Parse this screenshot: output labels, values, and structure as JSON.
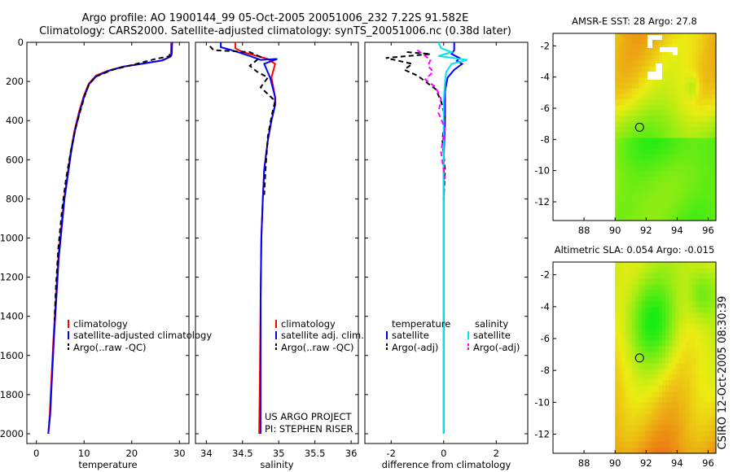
{
  "header": {
    "line1": "Argo profile: AO 1900144_99 05-Oct-2005 20051006_232 7.22S 91.582E",
    "line2": "Climatology: CARS2000. Satellite-adjusted climatology: synTS_20051006.nc (0.38d later)"
  },
  "side_stamp": "CSIRO 12-Oct-2005 08:30:39",
  "colors": {
    "climatology": "#ff0000",
    "satellite": "#0000ff",
    "argo": "#000000",
    "sal_satellite": "#00e5ee",
    "sal_argo": "#ff00ff"
  },
  "chart_data": [
    {
      "type": "line",
      "id": "temperature",
      "xlabel": "temperature",
      "ylabel": "",
      "xlim": [
        -2,
        32
      ],
      "ylim": [
        2050,
        0
      ],
      "xticks": [
        0,
        10,
        20,
        30
      ],
      "yticks": [
        0,
        200,
        400,
        600,
        800,
        1000,
        1200,
        1400,
        1600,
        1800,
        2000
      ],
      "legend": [
        "climatology",
        "satellite-adjusted climatology",
        "Argo(..raw -QC)"
      ],
      "series": [
        {
          "name": "climatology",
          "style": "solid",
          "color": "#ff0000",
          "x": [
            28.3,
            28.2,
            28.0,
            26,
            22,
            18,
            15,
            12.5,
            11,
            10,
            9,
            8,
            7.2,
            6.5,
            5.8,
            5.2,
            4.6,
            4.1,
            3.6,
            3.2,
            2.8,
            2.5
          ],
          "y": [
            0,
            60,
            75,
            95,
            110,
            125,
            145,
            170,
            210,
            270,
            350,
            450,
            560,
            680,
            800,
            950,
            1100,
            1300,
            1500,
            1700,
            1900,
            2000
          ]
        },
        {
          "name": "satellite-adjusted climatology",
          "style": "solid",
          "color": "#0000ff",
          "x": [
            28.5,
            28.4,
            28.2,
            26.5,
            22.5,
            18.3,
            15.2,
            12.6,
            11.1,
            10.1,
            9.1,
            8.1,
            7.3,
            6.6,
            5.9,
            5.3,
            4.7,
            4.2,
            3.7,
            3.3,
            2.9,
            2.5
          ],
          "y": [
            0,
            60,
            72,
            92,
            108,
            124,
            145,
            172,
            212,
            272,
            352,
            452,
            560,
            680,
            800,
            950,
            1100,
            1300,
            1500,
            1700,
            1900,
            2000
          ]
        },
        {
          "name": "Argo(..raw -QC)",
          "style": "dash",
          "color": "#000000",
          "x": [
            28.0,
            27.8,
            25,
            21,
            16,
            12.5,
            11,
            10.2,
            9.2,
            8.1,
            7.2,
            6.2,
            5.4,
            4.6,
            4.1,
            3.8
          ],
          "y": [
            60,
            72,
            85,
            110,
            140,
            175,
            215,
            270,
            350,
            450,
            560,
            700,
            850,
            1050,
            1250,
            1420
          ]
        }
      ]
    },
    {
      "type": "line",
      "id": "salinity",
      "xlabel": "salinity",
      "ylabel": "",
      "xlim": [
        33.85,
        36.1
      ],
      "xticks": [
        34,
        34.5,
        35,
        35.5,
        36
      ],
      "xticklabels": [
        "34",
        "34.5",
        "35",
        "35.5",
        "36"
      ],
      "legend": [
        "climatology",
        "satellite adj. clim.",
        "Argo(..raw -QC)"
      ],
      "annotation": [
        "US ARGO PROJECT",
        "PI: STEPHEN RISER"
      ],
      "series": [
        {
          "name": "climatology",
          "style": "solid",
          "color": "#ff0000",
          "x": [
            34.4,
            34.4,
            34.5,
            34.85,
            34.95,
            34.9,
            34.95,
            34.95,
            34.9,
            34.85,
            34.8,
            34.78,
            34.76,
            34.75,
            34.74,
            34.73
          ],
          "y": [
            0,
            30,
            50,
            85,
            110,
            180,
            280,
            320,
            400,
            500,
            650,
            800,
            1000,
            1300,
            1700,
            2000
          ]
        },
        {
          "name": "satellite adj. clim.",
          "style": "solid",
          "color": "#0000ff",
          "x": [
            34.2,
            34.2,
            34.35,
            34.6,
            34.75,
            34.98,
            34.8,
            34.88,
            34.95,
            34.95,
            34.9,
            34.85,
            34.8,
            34.78,
            34.76,
            34.75,
            34.75,
            34.75
          ],
          "y": [
            0,
            25,
            40,
            70,
            90,
            85,
            110,
            180,
            280,
            320,
            400,
            500,
            650,
            800,
            1000,
            1300,
            1700,
            2000
          ]
        },
        {
          "name": "Argo(..raw -QC)",
          "style": "dash",
          "color": "#000000",
          "x": [
            34.05,
            34.1,
            34.6,
            34.75,
            34.6,
            34.7,
            34.85,
            34.75,
            34.95,
            34.9,
            34.85,
            34.82,
            34.8
          ],
          "y": [
            20,
            40,
            50,
            75,
            120,
            150,
            180,
            230,
            300,
            380,
            480,
            640,
            780
          ]
        }
      ]
    },
    {
      "type": "line",
      "id": "difference",
      "xlabel": "difference from climatology",
      "ylabel": "",
      "xlim": [
        -3,
        3.2
      ],
      "xticks": [
        -2,
        0,
        2
      ],
      "legend": [
        "temperature",
        "satellite",
        "Argo(-adj)",
        "salinity",
        "satellite",
        "Argo(-adj)"
      ],
      "series": [
        {
          "name": "temperature satellite",
          "style": "solid",
          "color": "#0000ff",
          "x": [
            0.4,
            0.4,
            0.3,
            0.6,
            0.5,
            0.7,
            0.4,
            0.15,
            0.05,
            0.05,
            0,
            0,
            0,
            0,
            0
          ],
          "y": [
            0,
            40,
            60,
            80,
            95,
            110,
            140,
            180,
            250,
            400,
            600,
            900,
            1300,
            1700,
            2000
          ]
        },
        {
          "name": "temperature Argo(-adj)",
          "style": "dash",
          "color": "#000000",
          "x": [
            -1.4,
            -0.5,
            -2.2,
            -1.2,
            -1.5,
            -1.0,
            -0.7,
            -0.3,
            -0.1,
            0.05,
            -0.05,
            0.05,
            0
          ],
          "y": [
            50,
            60,
            80,
            110,
            140,
            170,
            200,
            240,
            300,
            380,
            500,
            650,
            800
          ]
        },
        {
          "name": "salinity satellite",
          "style": "solid",
          "color": "#00e5ee",
          "x": [
            -0.2,
            -0.1,
            0.3,
            -0.2,
            0.9,
            0.3,
            0.1,
            0.05,
            0,
            0,
            0,
            0,
            0
          ],
          "y": [
            0,
            30,
            50,
            70,
            90,
            110,
            150,
            200,
            300,
            500,
            900,
            1400,
            2000
          ]
        },
        {
          "name": "salinity Argo(-adj)",
          "style": "dash",
          "color": "#ff00ff",
          "x": [
            -1.0,
            -0.8,
            -0.5,
            -0.6,
            -0.4,
            -0.7,
            -0.3,
            -0.1,
            -0.2,
            0.05,
            -0.1,
            0.05
          ],
          "y": [
            40,
            60,
            90,
            120,
            150,
            190,
            230,
            290,
            360,
            440,
            560,
            700
          ]
        }
      ]
    },
    {
      "type": "heatmap",
      "id": "sst",
      "title": "AMSR-E SST: 28 Argo: 27.8",
      "xlim": [
        86,
        96.5
      ],
      "ylim": [
        -13.2,
        -1.2
      ],
      "xticks": [
        88,
        90,
        92,
        94,
        96
      ],
      "yticks": [
        -2,
        -4,
        -6,
        -8,
        -10,
        -12
      ],
      "marker": {
        "x": 91.58,
        "y": -7.22
      }
    },
    {
      "type": "heatmap",
      "id": "sla",
      "title": "Altimetric SLA: 0.054 Argo: -0.015",
      "xlim": [
        86,
        96.5
      ],
      "ylim": [
        -13.2,
        -1.2
      ],
      "xticks": [
        88,
        90,
        92,
        94,
        96
      ],
      "yticks": [
        -2,
        -4,
        -6,
        -8,
        -10,
        -12
      ],
      "marker": {
        "x": 91.58,
        "y": -7.22
      }
    }
  ]
}
